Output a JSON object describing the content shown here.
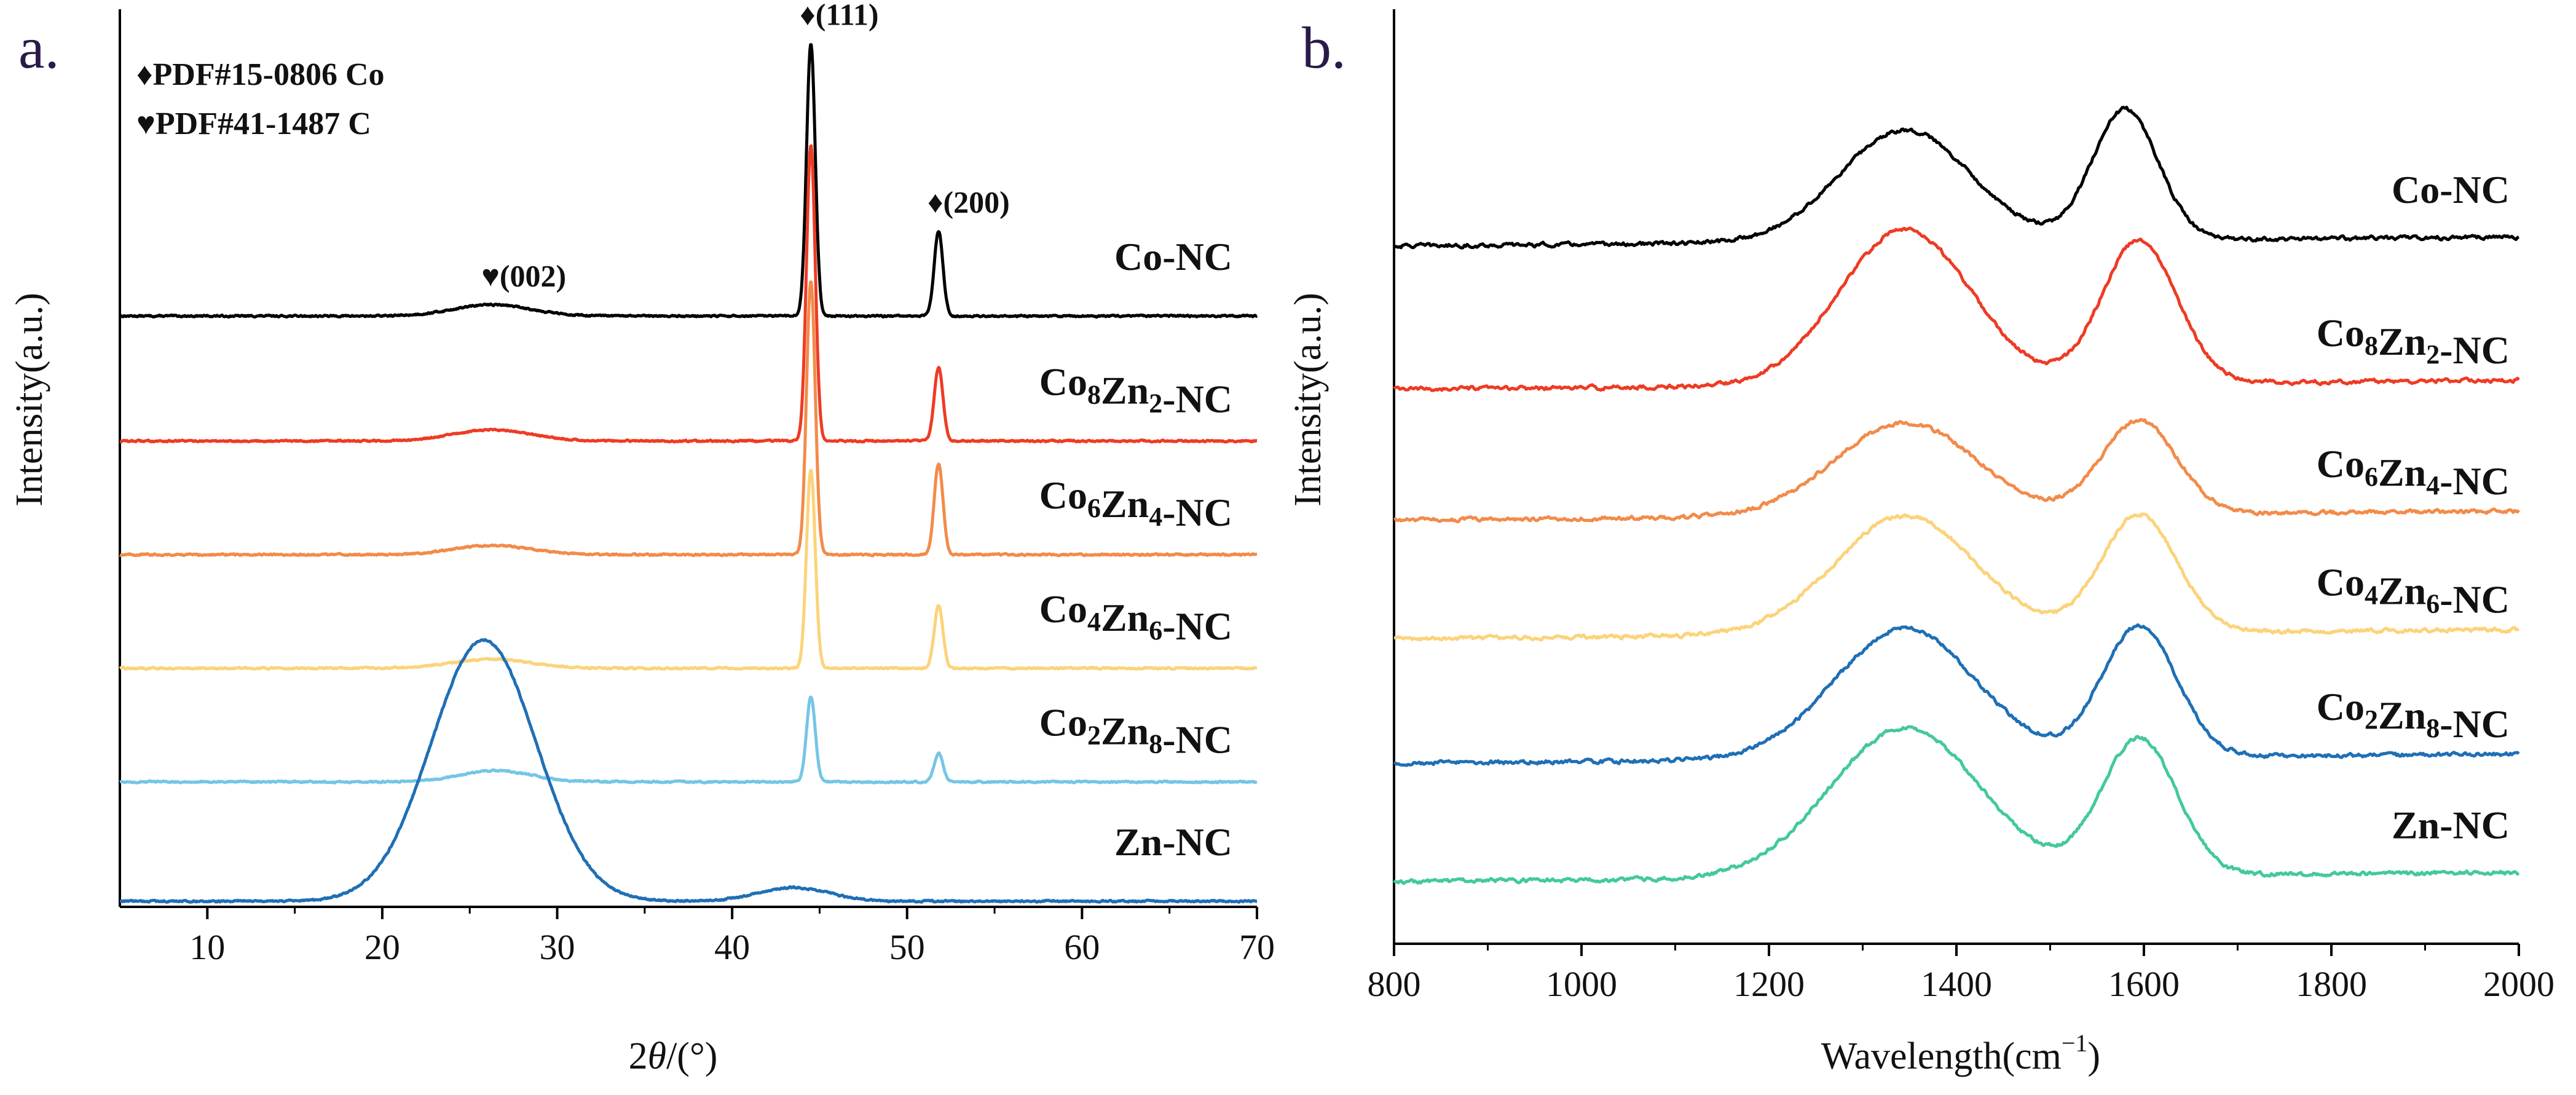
{
  "panels": [
    {
      "letter": "a.",
      "ylabel": "Intensity(a.u.)",
      "xlabel_italic": "θ",
      "xlabel_prefix": "2",
      "xlabel_suffix": "/(°)",
      "legend": [
        {
          "symbol": "♦",
          "text": "PDF#15-0806 Co"
        },
        {
          "symbol": "♥",
          "text": "PDF#41-1487 C"
        }
      ],
      "peak_labels": [
        {
          "symbol": "♥",
          "text": "(002)",
          "x": 26.3,
          "series": 0
        },
        {
          "symbol": "♦",
          "text": "(111)",
          "x": 44.5,
          "series": 0
        },
        {
          "symbol": "♦",
          "text": "(200)",
          "x": 51.8,
          "series": 0
        }
      ]
    },
    {
      "letter": "b.",
      "ylabel": "Intensity(a.u.)",
      "xlabel_main": "Wavelength(cm",
      "xlabel_sup": "−1",
      "xlabel_close": ")"
    }
  ],
  "series_labels": [
    {
      "main": "Co-NC",
      "parts": [
        [
          "Co-NC",
          ""
        ]
      ]
    },
    {
      "main": "Co8Zn2-NC",
      "parts": [
        [
          "Co",
          "8"
        ],
        [
          "Zn",
          "2"
        ],
        [
          "-NC",
          ""
        ]
      ]
    },
    {
      "main": "Co6Zn4-NC",
      "parts": [
        [
          "Co",
          "6"
        ],
        [
          "Zn",
          "4"
        ],
        [
          "-NC",
          ""
        ]
      ]
    },
    {
      "main": "Co4Zn6-NC",
      "parts": [
        [
          "Co",
          "4"
        ],
        [
          "Zn",
          "6"
        ],
        [
          "-NC",
          ""
        ]
      ]
    },
    {
      "main": "Co2Zn8-NC",
      "parts": [
        [
          "Co",
          "2"
        ],
        [
          "Zn",
          "8"
        ],
        [
          "-NC",
          ""
        ]
      ]
    },
    {
      "main": "Zn-NC",
      "parts": [
        [
          "Zn-NC",
          ""
        ]
      ]
    }
  ],
  "colors": [
    "#000000",
    "#ee3b24",
    "#f28b4a",
    "#fbd37a",
    "#75c5e6",
    "#1f6fb5"
  ],
  "raman_colors": [
    "#000000",
    "#ee3b24",
    "#f28b4a",
    "#fbd37a",
    "#1f6fb5",
    "#43c99a"
  ],
  "chart_data": [
    {
      "type": "line",
      "title": "",
      "xlabel": "2θ/(°)",
      "ylabel": "Intensity(a.u.)",
      "xlim": [
        5,
        70
      ],
      "xticks": [
        10,
        20,
        30,
        40,
        50,
        60,
        70
      ],
      "grid": false,
      "stacked_offsets": true,
      "series": [
        {
          "name": "Co-NC",
          "baseline": 5.2,
          "peaks": [
            [
              44.5,
              2.4,
              0.25
            ],
            [
              51.8,
              0.75,
              0.25
            ],
            [
              26.3,
              0.1,
              2.2
            ]
          ]
        },
        {
          "name": "Co8Zn2-NC",
          "baseline": 4.1,
          "peaks": [
            [
              44.5,
              2.6,
              0.25
            ],
            [
              51.8,
              0.65,
              0.25
            ],
            [
              26.3,
              0.1,
              2.2
            ]
          ]
        },
        {
          "name": "Co6Zn4-NC",
          "baseline": 3.1,
          "peaks": [
            [
              44.5,
              2.4,
              0.25
            ],
            [
              51.8,
              0.8,
              0.25
            ],
            [
              26.3,
              0.08,
              2.2
            ]
          ]
        },
        {
          "name": "Co4Zn6-NC",
          "baseline": 2.1,
          "peaks": [
            [
              44.5,
              1.75,
              0.25
            ],
            [
              51.8,
              0.55,
              0.25
            ],
            [
              26.3,
              0.08,
              2.2
            ]
          ]
        },
        {
          "name": "Co2Zn8-NC",
          "baseline": 1.1,
          "peaks": [
            [
              44.5,
              0.75,
              0.25
            ],
            [
              51.8,
              0.25,
              0.25
            ],
            [
              26.5,
              0.1,
              2.0
            ]
          ]
        },
        {
          "name": "Zn-NC",
          "baseline": 0.05,
          "peaks": [
            [
              25.8,
              2.3,
              3.0
            ],
            [
              43.5,
              0.12,
              2.0
            ]
          ]
        }
      ]
    },
    {
      "type": "line",
      "title": "",
      "xlabel": "Wavelength(cm−1)",
      "ylabel": "Intensity(a.u.)",
      "xlim": [
        800,
        2000
      ],
      "xticks": [
        800,
        1000,
        1200,
        1400,
        1600,
        1800,
        2000
      ],
      "grid": false,
      "stacked_offsets": true,
      "series": [
        {
          "name": "Co-NC",
          "baseline": 5.2,
          "peaks": [
            [
              1345,
              0.9,
              70
            ],
            [
              1580,
              1.05,
              35
            ]
          ]
        },
        {
          "name": "Co8Zn2-NC",
          "baseline": 4.05,
          "peaks": [
            [
              1345,
              1.25,
              70
            ],
            [
              1595,
              1.15,
              40
            ]
          ]
        },
        {
          "name": "Co6Zn4-NC",
          "baseline": 3.0,
          "peaks": [
            [
              1345,
              0.75,
              75
            ],
            [
              1595,
              0.75,
              40
            ]
          ]
        },
        {
          "name": "Co4Zn6-NC",
          "baseline": 2.05,
          "peaks": [
            [
              1345,
              0.95,
              75
            ],
            [
              1595,
              0.95,
              40
            ]
          ]
        },
        {
          "name": "Co2Zn8-NC",
          "baseline": 1.05,
          "peaks": [
            [
              1345,
              1.05,
              75
            ],
            [
              1595,
              1.05,
              40
            ]
          ]
        },
        {
          "name": "Zn-NC",
          "baseline": 0.1,
          "peaks": [
            [
              1345,
              1.2,
              80
            ],
            [
              1595,
              1.1,
              40
            ]
          ]
        }
      ]
    }
  ]
}
